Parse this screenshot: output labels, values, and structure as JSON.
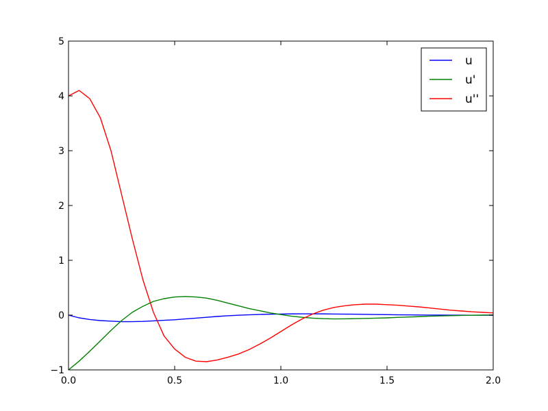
{
  "chart_data": {
    "type": "line",
    "title": "",
    "xlabel": "",
    "ylabel": "",
    "xlim": [
      0.0,
      2.0
    ],
    "ylim": [
      -1,
      5
    ],
    "grid": false,
    "legend_position": "top-right",
    "x_ticks": [
      0.0,
      0.5,
      1.0,
      1.5,
      2.0
    ],
    "x_tick_labels": [
      "0.0",
      "0.5",
      "1.0",
      "1.5",
      "2.0"
    ],
    "y_ticks": [
      -1,
      0,
      1,
      2,
      3,
      4,
      5
    ],
    "y_tick_labels": [
      "−1",
      "0",
      "1",
      "2",
      "3",
      "4",
      "5"
    ],
    "x": [
      0.0,
      0.05,
      0.1,
      0.15,
      0.2,
      0.25,
      0.3,
      0.35,
      0.4,
      0.45,
      0.5,
      0.55,
      0.6,
      0.65,
      0.7,
      0.75,
      0.8,
      0.85,
      0.9,
      0.95,
      1.0,
      1.05,
      1.1,
      1.15,
      1.2,
      1.25,
      1.3,
      1.35,
      1.4,
      1.45,
      1.5,
      1.55,
      1.6,
      1.65,
      1.7,
      1.75,
      1.8,
      1.85,
      1.9,
      1.95,
      2.0
    ],
    "series": [
      {
        "name": "u",
        "color": "#0000ff",
        "values": [
          0.0,
          -0.05,
          -0.08,
          -0.1,
          -0.11,
          -0.12,
          -0.12,
          -0.115,
          -0.105,
          -0.095,
          -0.085,
          -0.07,
          -0.055,
          -0.04,
          -0.025,
          -0.012,
          -0.002,
          0.006,
          0.012,
          0.016,
          0.02,
          0.022,
          0.023,
          0.023,
          0.022,
          0.02,
          0.018,
          0.016,
          0.013,
          0.01,
          0.008,
          0.006,
          0.004,
          0.002,
          0.001,
          0.0,
          -0.001,
          -0.001,
          -0.002,
          -0.002,
          -0.002
        ]
      },
      {
        "name": "u'",
        "color": "#008000",
        "values": [
          -1.0,
          -0.84,
          -0.66,
          -0.47,
          -0.28,
          -0.1,
          0.05,
          0.16,
          0.25,
          0.3,
          0.33,
          0.34,
          0.33,
          0.31,
          0.27,
          0.22,
          0.17,
          0.12,
          0.08,
          0.04,
          0.01,
          -0.02,
          -0.04,
          -0.055,
          -0.065,
          -0.07,
          -0.068,
          -0.065,
          -0.06,
          -0.055,
          -0.05,
          -0.042,
          -0.035,
          -0.028,
          -0.02,
          -0.015,
          -0.01,
          -0.005,
          -0.002,
          0.0,
          0.002
        ]
      },
      {
        "name": "u''",
        "color": "#ff0000",
        "values": [
          4.0,
          4.1,
          3.95,
          3.6,
          3.0,
          2.2,
          1.4,
          0.65,
          0.05,
          -0.38,
          -0.62,
          -0.77,
          -0.84,
          -0.85,
          -0.82,
          -0.77,
          -0.71,
          -0.63,
          -0.53,
          -0.42,
          -0.3,
          -0.18,
          -0.07,
          0.02,
          0.09,
          0.14,
          0.17,
          0.19,
          0.2,
          0.2,
          0.19,
          0.18,
          0.165,
          0.15,
          0.13,
          0.11,
          0.09,
          0.075,
          0.06,
          0.05,
          0.04
        ]
      }
    ]
  }
}
